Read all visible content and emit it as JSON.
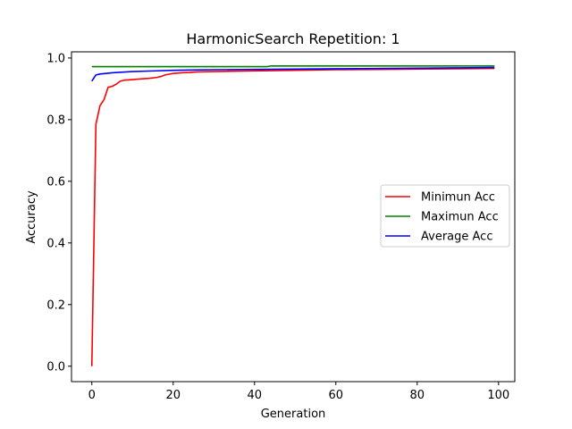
{
  "chart_data": {
    "type": "line",
    "title": "HarmonicSearch Repetition: 1",
    "xlabel": "Generation",
    "ylabel": "Accuracy",
    "xlim": [
      -5,
      104
    ],
    "ylim": [
      -0.05,
      1.02
    ],
    "xticks": [
      0,
      20,
      40,
      60,
      80,
      100
    ],
    "yticks": [
      0.0,
      0.2,
      0.4,
      0.6,
      0.8,
      1.0
    ],
    "xtick_labels": [
      "0",
      "20",
      "40",
      "60",
      "80",
      "100"
    ],
    "ytick_labels": [
      "0.0",
      "0.2",
      "0.4",
      "0.6",
      "0.8",
      "1.0"
    ],
    "grid": false,
    "legend_position": "center-right",
    "series": [
      {
        "name": "Minimun Acc",
        "color": "#ff0000",
        "x": [
          0,
          1,
          2,
          3,
          4,
          5,
          6,
          7,
          8,
          10,
          12,
          14,
          16,
          17,
          18,
          20,
          22,
          24,
          26,
          30,
          40,
          50,
          60,
          70,
          80,
          90,
          99
        ],
        "y": [
          0.0,
          0.785,
          0.845,
          0.865,
          0.905,
          0.908,
          0.915,
          0.925,
          0.928,
          0.93,
          0.932,
          0.934,
          0.937,
          0.94,
          0.945,
          0.95,
          0.952,
          0.953,
          0.955,
          0.956,
          0.958,
          0.96,
          0.962,
          0.963,
          0.964,
          0.965,
          0.966
        ]
      },
      {
        "name": "Maximun Acc",
        "color": "#008000",
        "x": [
          0,
          10,
          20,
          30,
          40,
          43,
          44,
          50,
          60,
          70,
          80,
          90,
          99
        ],
        "y": [
          0.972,
          0.972,
          0.972,
          0.972,
          0.972,
          0.972,
          0.974,
          0.974,
          0.974,
          0.974,
          0.974,
          0.974,
          0.974
        ]
      },
      {
        "name": "Average Acc",
        "color": "#0000ff",
        "x": [
          0,
          1,
          2,
          5,
          10,
          15,
          20,
          25,
          30,
          40,
          50,
          60,
          70,
          80,
          90,
          99
        ],
        "y": [
          0.925,
          0.945,
          0.948,
          0.952,
          0.956,
          0.958,
          0.96,
          0.961,
          0.962,
          0.963,
          0.964,
          0.965,
          0.966,
          0.967,
          0.968,
          0.969
        ]
      }
    ]
  }
}
